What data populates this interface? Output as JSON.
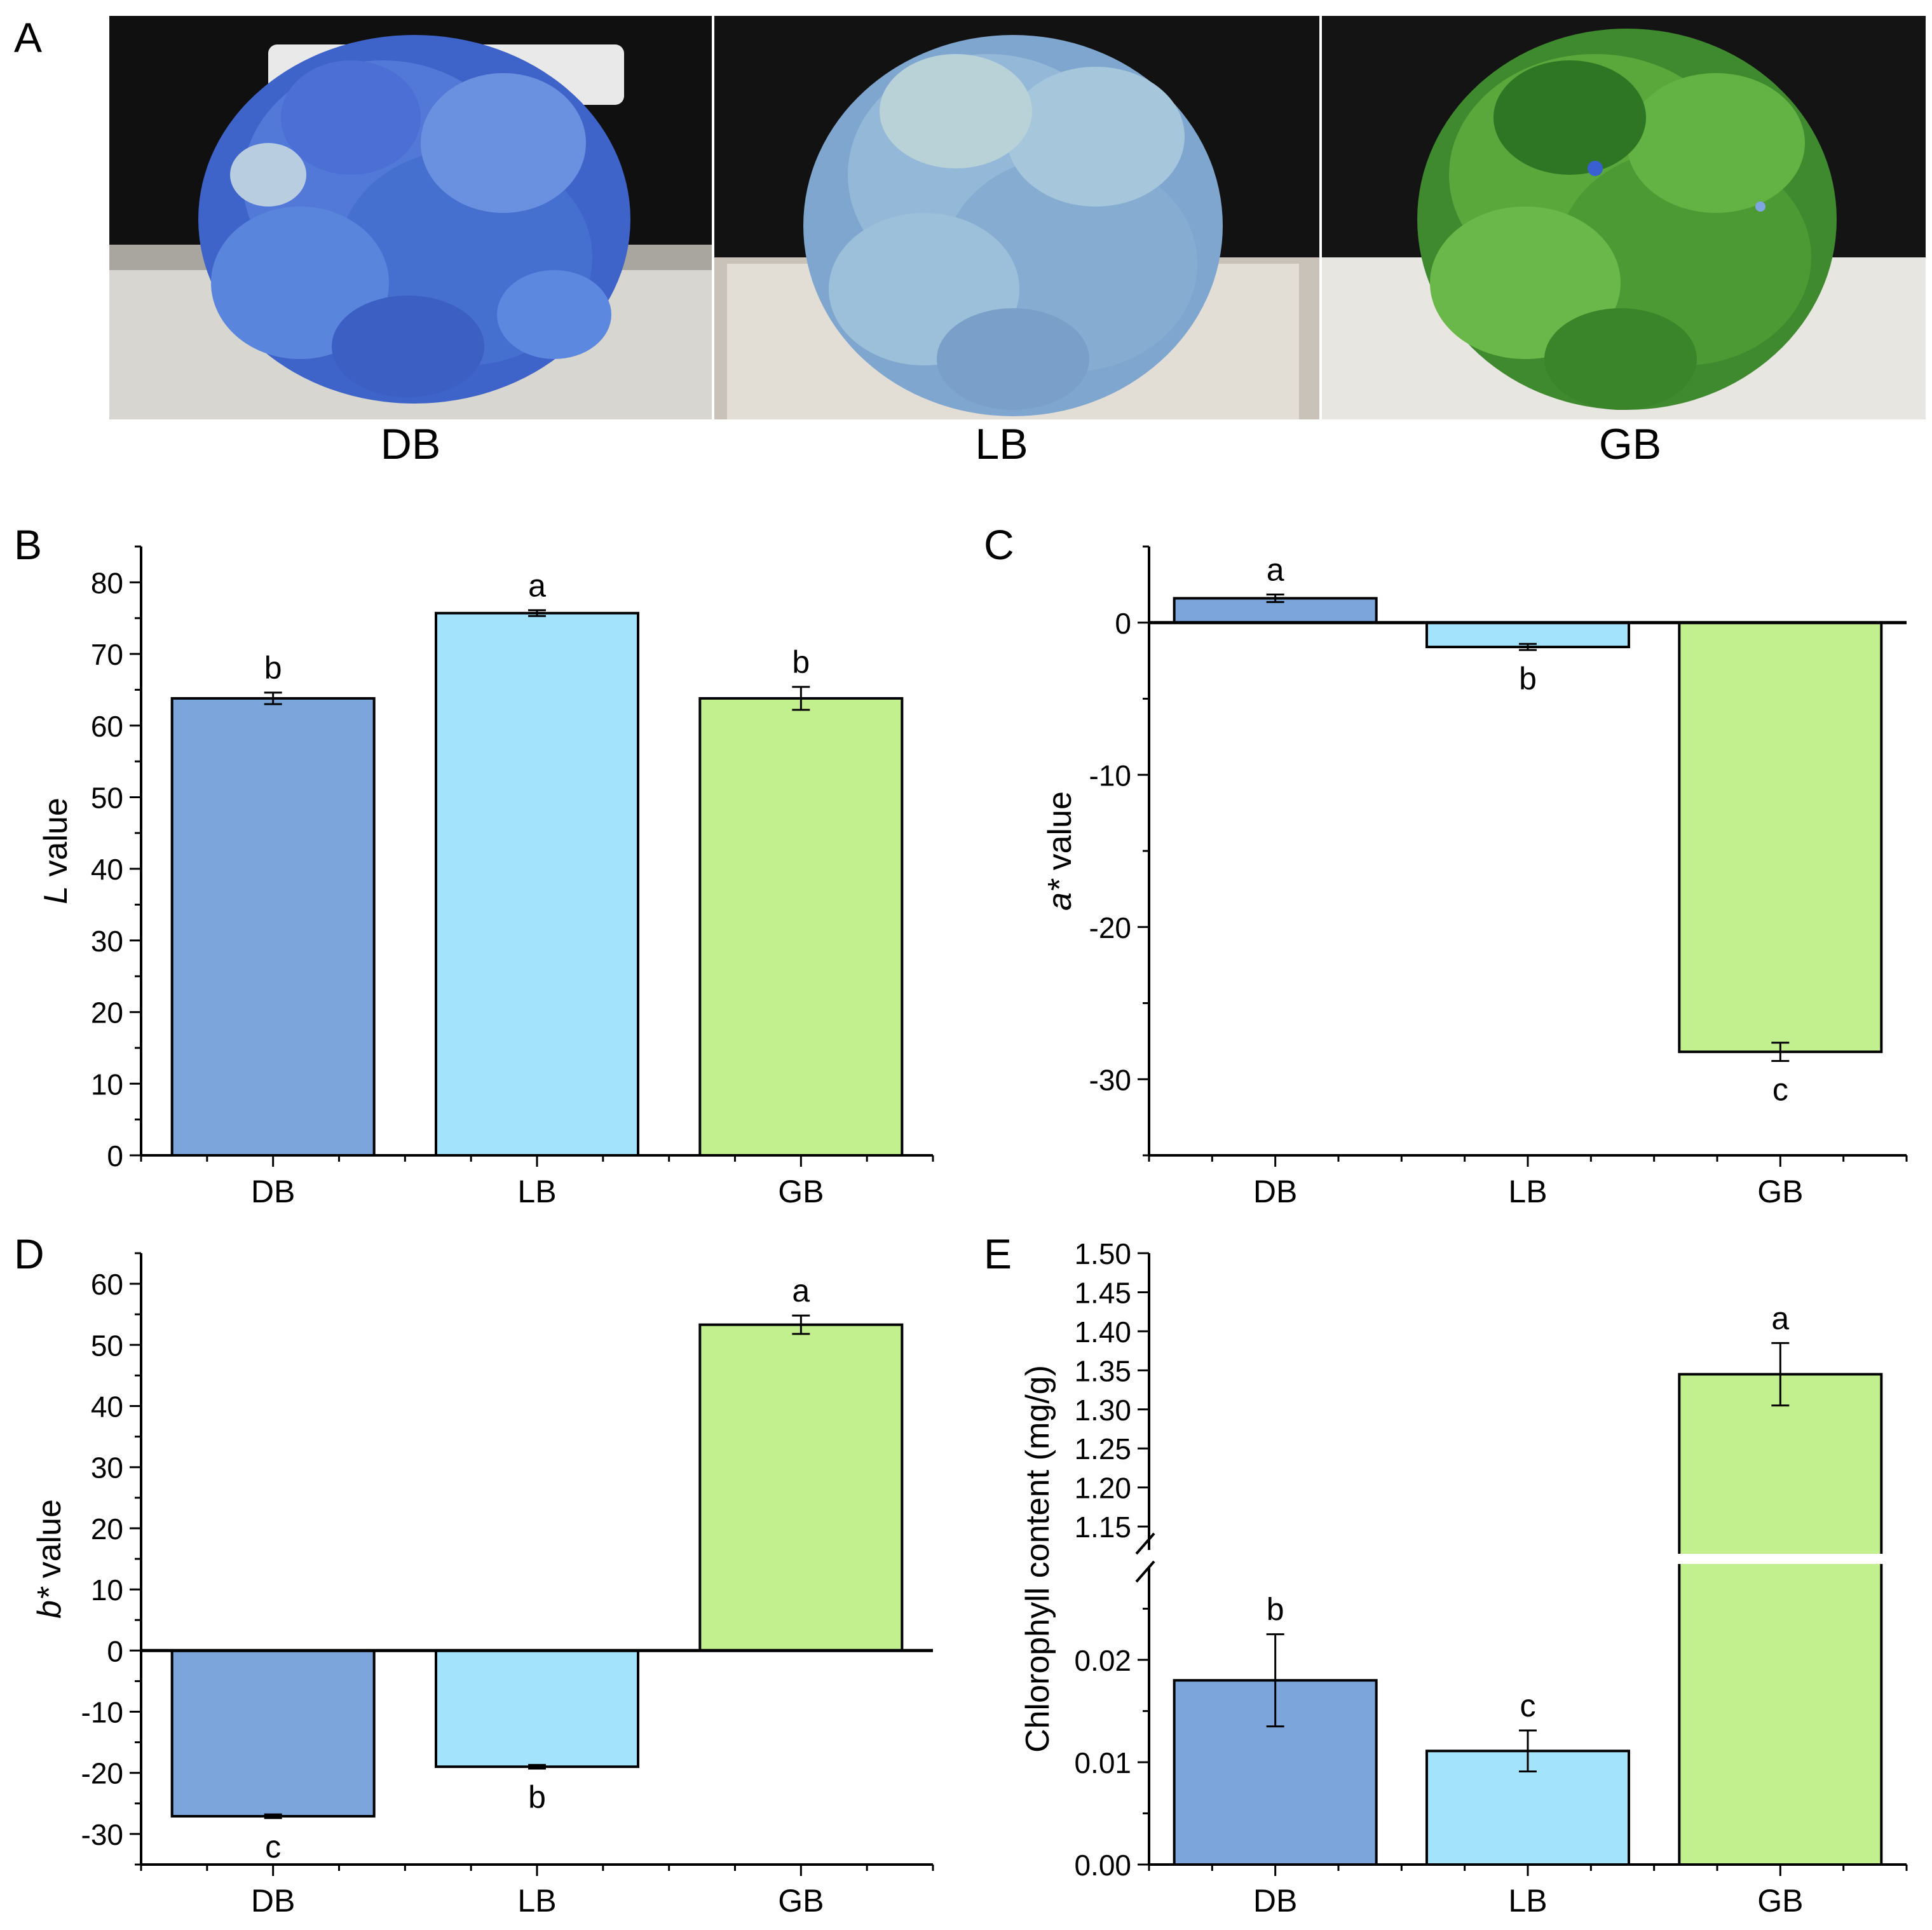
{
  "figure": {
    "panel_letters": [
      "A",
      "B",
      "C",
      "D",
      "E"
    ],
    "photos": [
      {
        "label": "DB",
        "scene": "hydrangea-dark-blue"
      },
      {
        "label": "LB",
        "scene": "hydrangea-light-blue"
      },
      {
        "label": "GB",
        "scene": "hydrangea-green"
      }
    ]
  },
  "colors": {
    "DB": "#7ba5db",
    "LB": "#a3e4fc",
    "GB": "#c3f08e"
  },
  "chart_data": [
    {
      "id": "B",
      "type": "bar",
      "categories": [
        "DB",
        "LB",
        "GB"
      ],
      "values": [
        63.8,
        75.7,
        63.8
      ],
      "errors": [
        0.8,
        0.4,
        1.6
      ],
      "letters": [
        "b",
        "a",
        "b"
      ],
      "ylabel_italic": "L",
      "ylabel_rest": " value",
      "ylim": [
        0,
        85
      ],
      "yticks": [
        0,
        10,
        20,
        30,
        40,
        50,
        60,
        70,
        80
      ],
      "ytick_labels": [
        "0",
        "10",
        "20",
        "30",
        "40",
        "50",
        "60",
        "70",
        "80"
      ]
    },
    {
      "id": "C",
      "type": "bar",
      "categories": [
        "DB",
        "LB",
        "GB"
      ],
      "values": [
        1.6,
        -1.6,
        -28.2
      ],
      "errors": [
        0.25,
        0.2,
        0.6
      ],
      "letters": [
        "a",
        "b",
        "c"
      ],
      "ylabel_italic": "a*",
      "ylabel_rest": " value",
      "ylim": [
        -35,
        5
      ],
      "yticks": [
        0,
        -10,
        -20,
        -30
      ],
      "ytick_labels": [
        "0",
        "-10",
        "-20",
        "-30"
      ]
    },
    {
      "id": "D",
      "type": "bar",
      "categories": [
        "DB",
        "LB",
        "GB"
      ],
      "values": [
        -27.1,
        -19.0,
        53.3
      ],
      "errors": [
        0.3,
        0.3,
        1.5
      ],
      "letters": [
        "c",
        "b",
        "a"
      ],
      "ylabel_italic": "b*",
      "ylabel_rest": " value",
      "ylim": [
        -35,
        65
      ],
      "yticks": [
        60,
        50,
        40,
        30,
        20,
        10,
        0,
        -10,
        -20,
        -30
      ],
      "ytick_labels": [
        "60",
        "50",
        "40",
        "30",
        "20",
        "10",
        "0",
        "-10",
        "-20",
        "-30"
      ]
    },
    {
      "id": "E",
      "type": "bar",
      "categories": [
        "DB",
        "LB",
        "GB"
      ],
      "values": [
        0.018,
        0.0111,
        1.345
      ],
      "errors": [
        0.0045,
        0.002,
        0.04
      ],
      "letters": [
        "b",
        "c",
        "a"
      ],
      "ylabel": "Chlorophyll content (mg/g)",
      "axis_break": true,
      "ylim_lower": [
        0,
        0.029
      ],
      "ylim_upper": [
        1.12,
        1.5
      ],
      "yticks_lower": [
        0,
        0.01,
        0.02
      ],
      "ytick_labels_lower": [
        "0.00",
        "0.01",
        "0.02"
      ],
      "yticks_upper": [
        1.15,
        1.2,
        1.25,
        1.3,
        1.35,
        1.4,
        1.45,
        1.5
      ],
      "ytick_labels_upper": [
        "1.15",
        "1.20",
        "1.25",
        "1.30",
        "1.35",
        "1.40",
        "1.45",
        "1.50"
      ]
    }
  ]
}
